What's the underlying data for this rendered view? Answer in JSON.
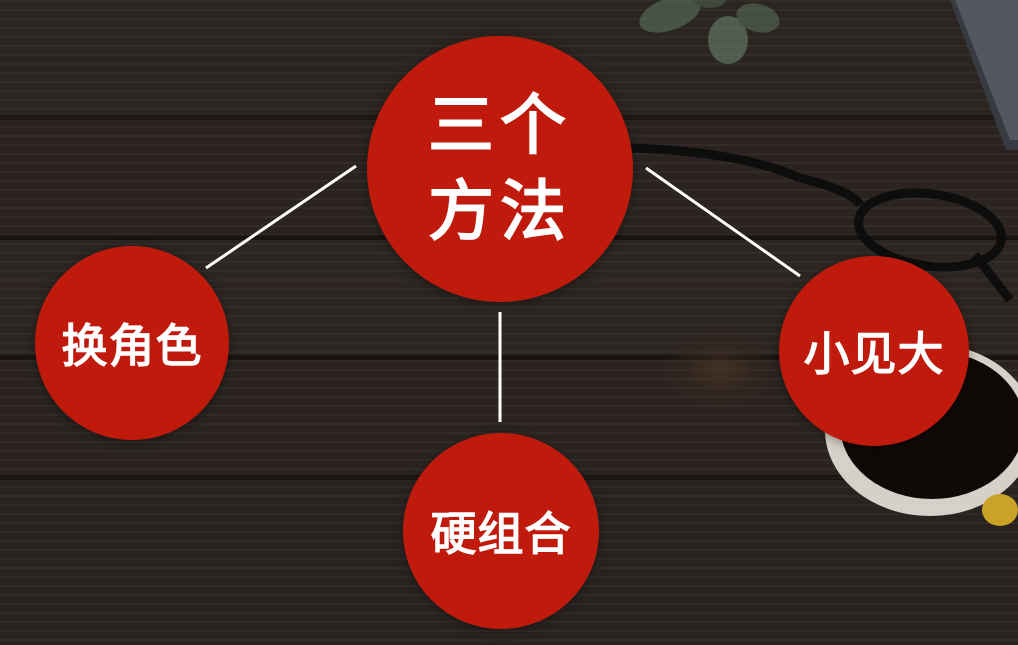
{
  "diagram": {
    "center": {
      "label": "三个方法"
    },
    "branches": [
      {
        "label": "换角色"
      },
      {
        "label": "硬组合"
      },
      {
        "label": "小见大"
      }
    ]
  },
  "colors": {
    "node_fill": "#c01a0d",
    "node_text": "#ffffff",
    "connector": "#ffffff",
    "background": "#231d1a"
  }
}
